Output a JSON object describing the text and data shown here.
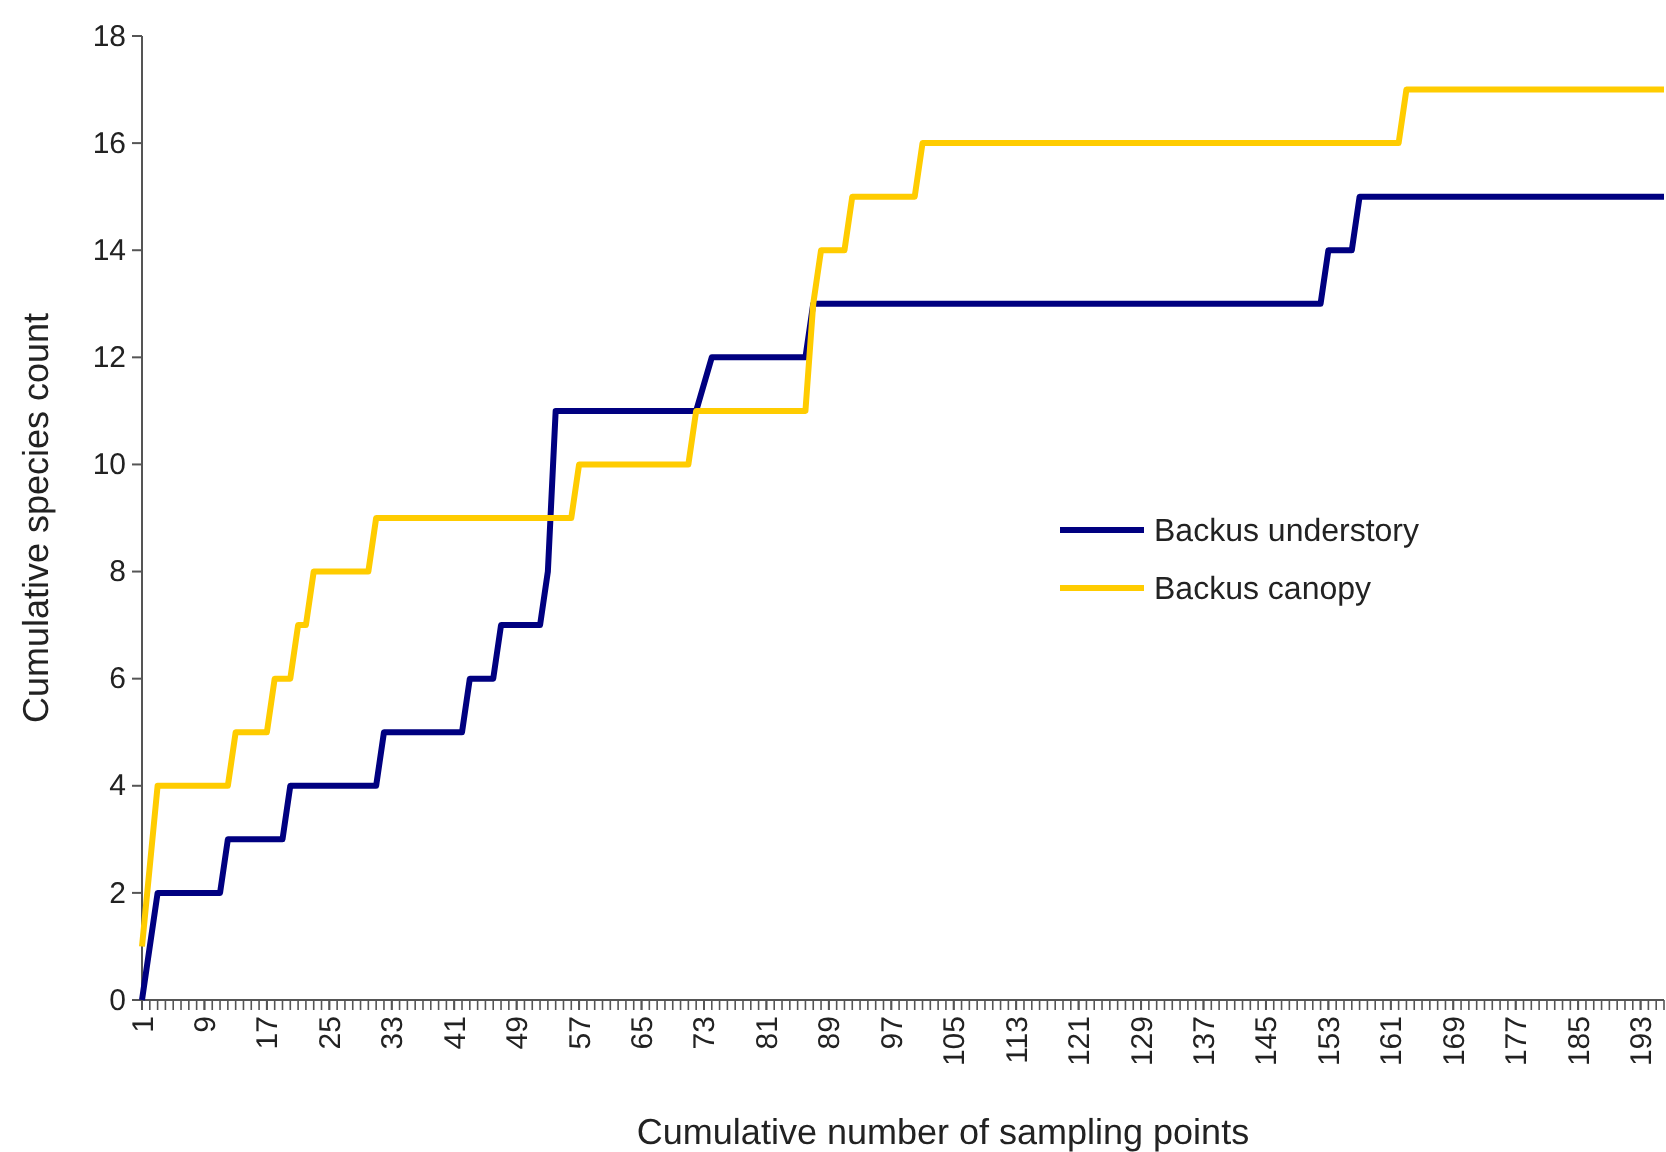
{
  "chart_data": {
    "type": "line",
    "xlabel": "Cumulative number of sampling points",
    "ylabel": "Cumulative species count",
    "xlim": [
      1,
      196
    ],
    "xticks": [
      1,
      9,
      17,
      25,
      33,
      41,
      49,
      57,
      65,
      73,
      81,
      89,
      97,
      105,
      113,
      121,
      129,
      137,
      145,
      153,
      161,
      169,
      177,
      185,
      193
    ],
    "ylim": [
      0,
      18
    ],
    "yticks": [
      0,
      2,
      4,
      6,
      8,
      10,
      12,
      14,
      16,
      18
    ],
    "grid": false,
    "legend": "right",
    "marker": "none",
    "line_style": "solid",
    "series": [
      {
        "name": "Backus understory",
        "color": "#000080",
        "x": [
          1,
          3,
          11,
          12,
          19,
          20,
          31,
          32,
          42,
          43,
          46,
          47,
          52,
          53,
          54,
          72,
          74,
          86,
          87,
          152,
          153,
          156,
          157,
          196
        ],
        "values": [
          0,
          2,
          2,
          3,
          3,
          4,
          4,
          5,
          5,
          6,
          6,
          7,
          7,
          8,
          11,
          11,
          12,
          12,
          13,
          13,
          14,
          14,
          15,
          15
        ]
      },
      {
        "name": "Backus canopy",
        "color": "#ffcc00",
        "x": [
          1,
          3,
          12,
          13,
          17,
          18,
          20,
          21,
          22,
          23,
          30,
          31,
          56,
          57,
          71,
          72,
          86,
          87,
          88,
          91,
          92,
          100,
          101,
          162,
          163,
          196
        ],
        "values": [
          1,
          4,
          4,
          5,
          5,
          6,
          6,
          7,
          7,
          8,
          8,
          9,
          9,
          10,
          10,
          11,
          11,
          13,
          14,
          14,
          15,
          15,
          16,
          16,
          17,
          17
        ]
      }
    ]
  }
}
